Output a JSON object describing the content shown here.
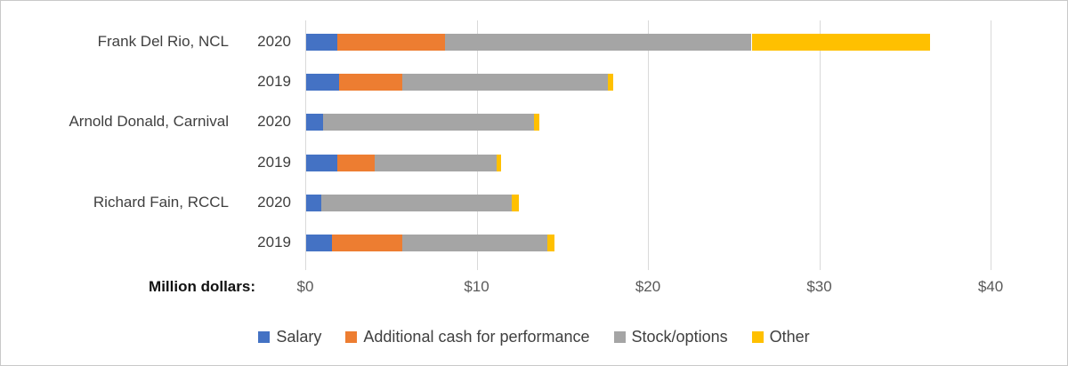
{
  "chart_data": {
    "type": "bar",
    "orientation": "horizontal",
    "stacked": true,
    "title": "",
    "xlabel": "Million dollars:",
    "ylabel": "",
    "xlim": [
      0,
      40
    ],
    "x_ticks": [
      {
        "label": "$0",
        "value": 0
      },
      {
        "label": "$10",
        "value": 10
      },
      {
        "label": "$20",
        "value": 20
      },
      {
        "label": "$30",
        "value": 30
      },
      {
        "label": "$40",
        "value": 40
      }
    ],
    "grid": "vertical-on",
    "legend_position": "bottom",
    "series_names": [
      "Salary",
      "Additional cash for performance",
      "Stock/options",
      "Other"
    ],
    "rows": [
      {
        "group": "Frank Del Rio, NCL",
        "year": "2020",
        "values": [
          1.8,
          6.3,
          17.9,
          10.4
        ],
        "total": 36.4
      },
      {
        "group": "",
        "year": "2019",
        "values": [
          1.9,
          3.7,
          12.0,
          0.3
        ],
        "total": 17.9
      },
      {
        "group": "Arnold Donald, Carnival",
        "year": "2020",
        "values": [
          1.0,
          0.0,
          12.3,
          0.3
        ],
        "total": 13.6
      },
      {
        "group": "",
        "year": "2019",
        "values": [
          1.8,
          2.2,
          7.1,
          0.3
        ],
        "total": 11.4
      },
      {
        "group": "Richard Fain, RCCL",
        "year": "2020",
        "values": [
          0.9,
          0.0,
          11.1,
          0.4
        ],
        "total": 12.4
      },
      {
        "group": "",
        "year": "2019",
        "values": [
          1.5,
          4.1,
          8.5,
          0.4
        ],
        "total": 14.5
      }
    ],
    "legend": [
      {
        "label": "Salary",
        "color": "#4472C4"
      },
      {
        "label": "Additional cash for performance",
        "color": "#ED7D31"
      },
      {
        "label": "Stock/options",
        "color": "#A5A5A5"
      },
      {
        "label": "Other",
        "color": "#FFC000"
      }
    ],
    "colors": {
      "salary": "#4472C4",
      "additional_cash": "#ED7D31",
      "stock_options": "#A5A5A5",
      "other": "#FFC000",
      "gridline": "#D9D9D9"
    }
  }
}
